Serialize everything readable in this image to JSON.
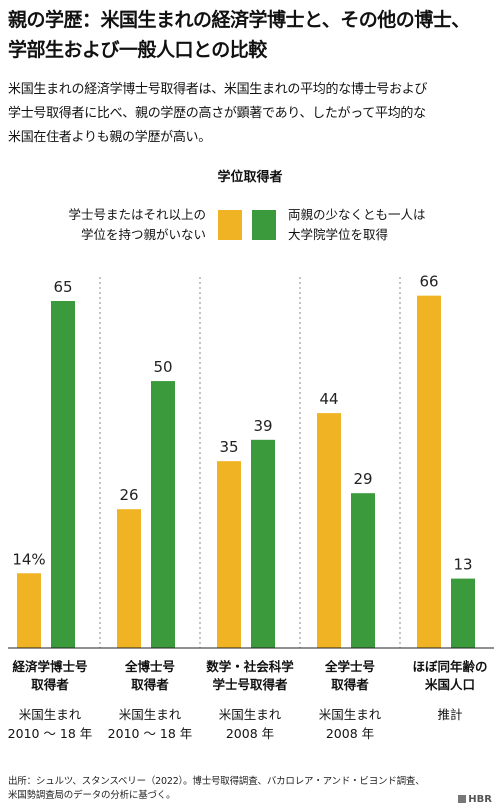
{
  "header": {
    "title_line1": "親の学歴：米国生まれの経済学博士と、その他の博士、",
    "title_line2": "学部生および一般人口との比較",
    "subtitle_line1": "米国生まれの経済学博士号取得者は、米国生まれの平均的な博士号および",
    "subtitle_line2": "学士号取得者に比べ、親の学歴の高さが顕著であり、したがって平均的な",
    "subtitle_line3": "米国在住者よりも親の学歴が高い。"
  },
  "legend": {
    "heading": "学位取得者",
    "placement": "top"
  },
  "chart_data": {
    "type": "bar",
    "categories": [
      {
        "name": [
          "経済学博士号",
          "取得者"
        ],
        "sub": [
          "米国生まれ",
          "2010 ～ 18 年"
        ]
      },
      {
        "name": [
          "全博士号",
          "取得者"
        ],
        "sub": [
          "米国生まれ",
          "2010 ～ 18 年"
        ]
      },
      {
        "name": [
          "数学・社会科学",
          "学士号取得者"
        ],
        "sub": [
          "米国生まれ",
          "2008 年"
        ]
      },
      {
        "name": [
          "全学士号",
          "取得者"
        ],
        "sub": [
          "米国生まれ",
          "2008 年"
        ]
      },
      {
        "name": [
          "ほぼ同年齢の",
          "米国人口"
        ],
        "sub": [
          "推計"
        ]
      }
    ],
    "series": [
      {
        "name": [
          "学士号またはそれ以上の",
          "学位を持つ親がいない"
        ],
        "color": "#f0b323",
        "values": [
          14,
          26,
          35,
          44,
          66
        ],
        "labels": [
          "14%",
          "26",
          "35",
          "44",
          "66"
        ]
      },
      {
        "name": [
          "両親の少なくとも一人は",
          "大学院学位を取得"
        ],
        "color": "#3a9a3c",
        "values": [
          65,
          50,
          39,
          29,
          13
        ],
        "labels": [
          "65",
          "50",
          "39",
          "29",
          "13"
        ]
      }
    ],
    "ylim": [
      0,
      70
    ],
    "grid": false
  },
  "footer": {
    "source_line1": "出所：シュルツ、スタンスベリー（2022）。博士号取得調査、バカロレア・アンド・ビヨンド調査、",
    "source_line2": "米国勢調査局のデータの分析に基づく。",
    "logo": "HBR"
  }
}
